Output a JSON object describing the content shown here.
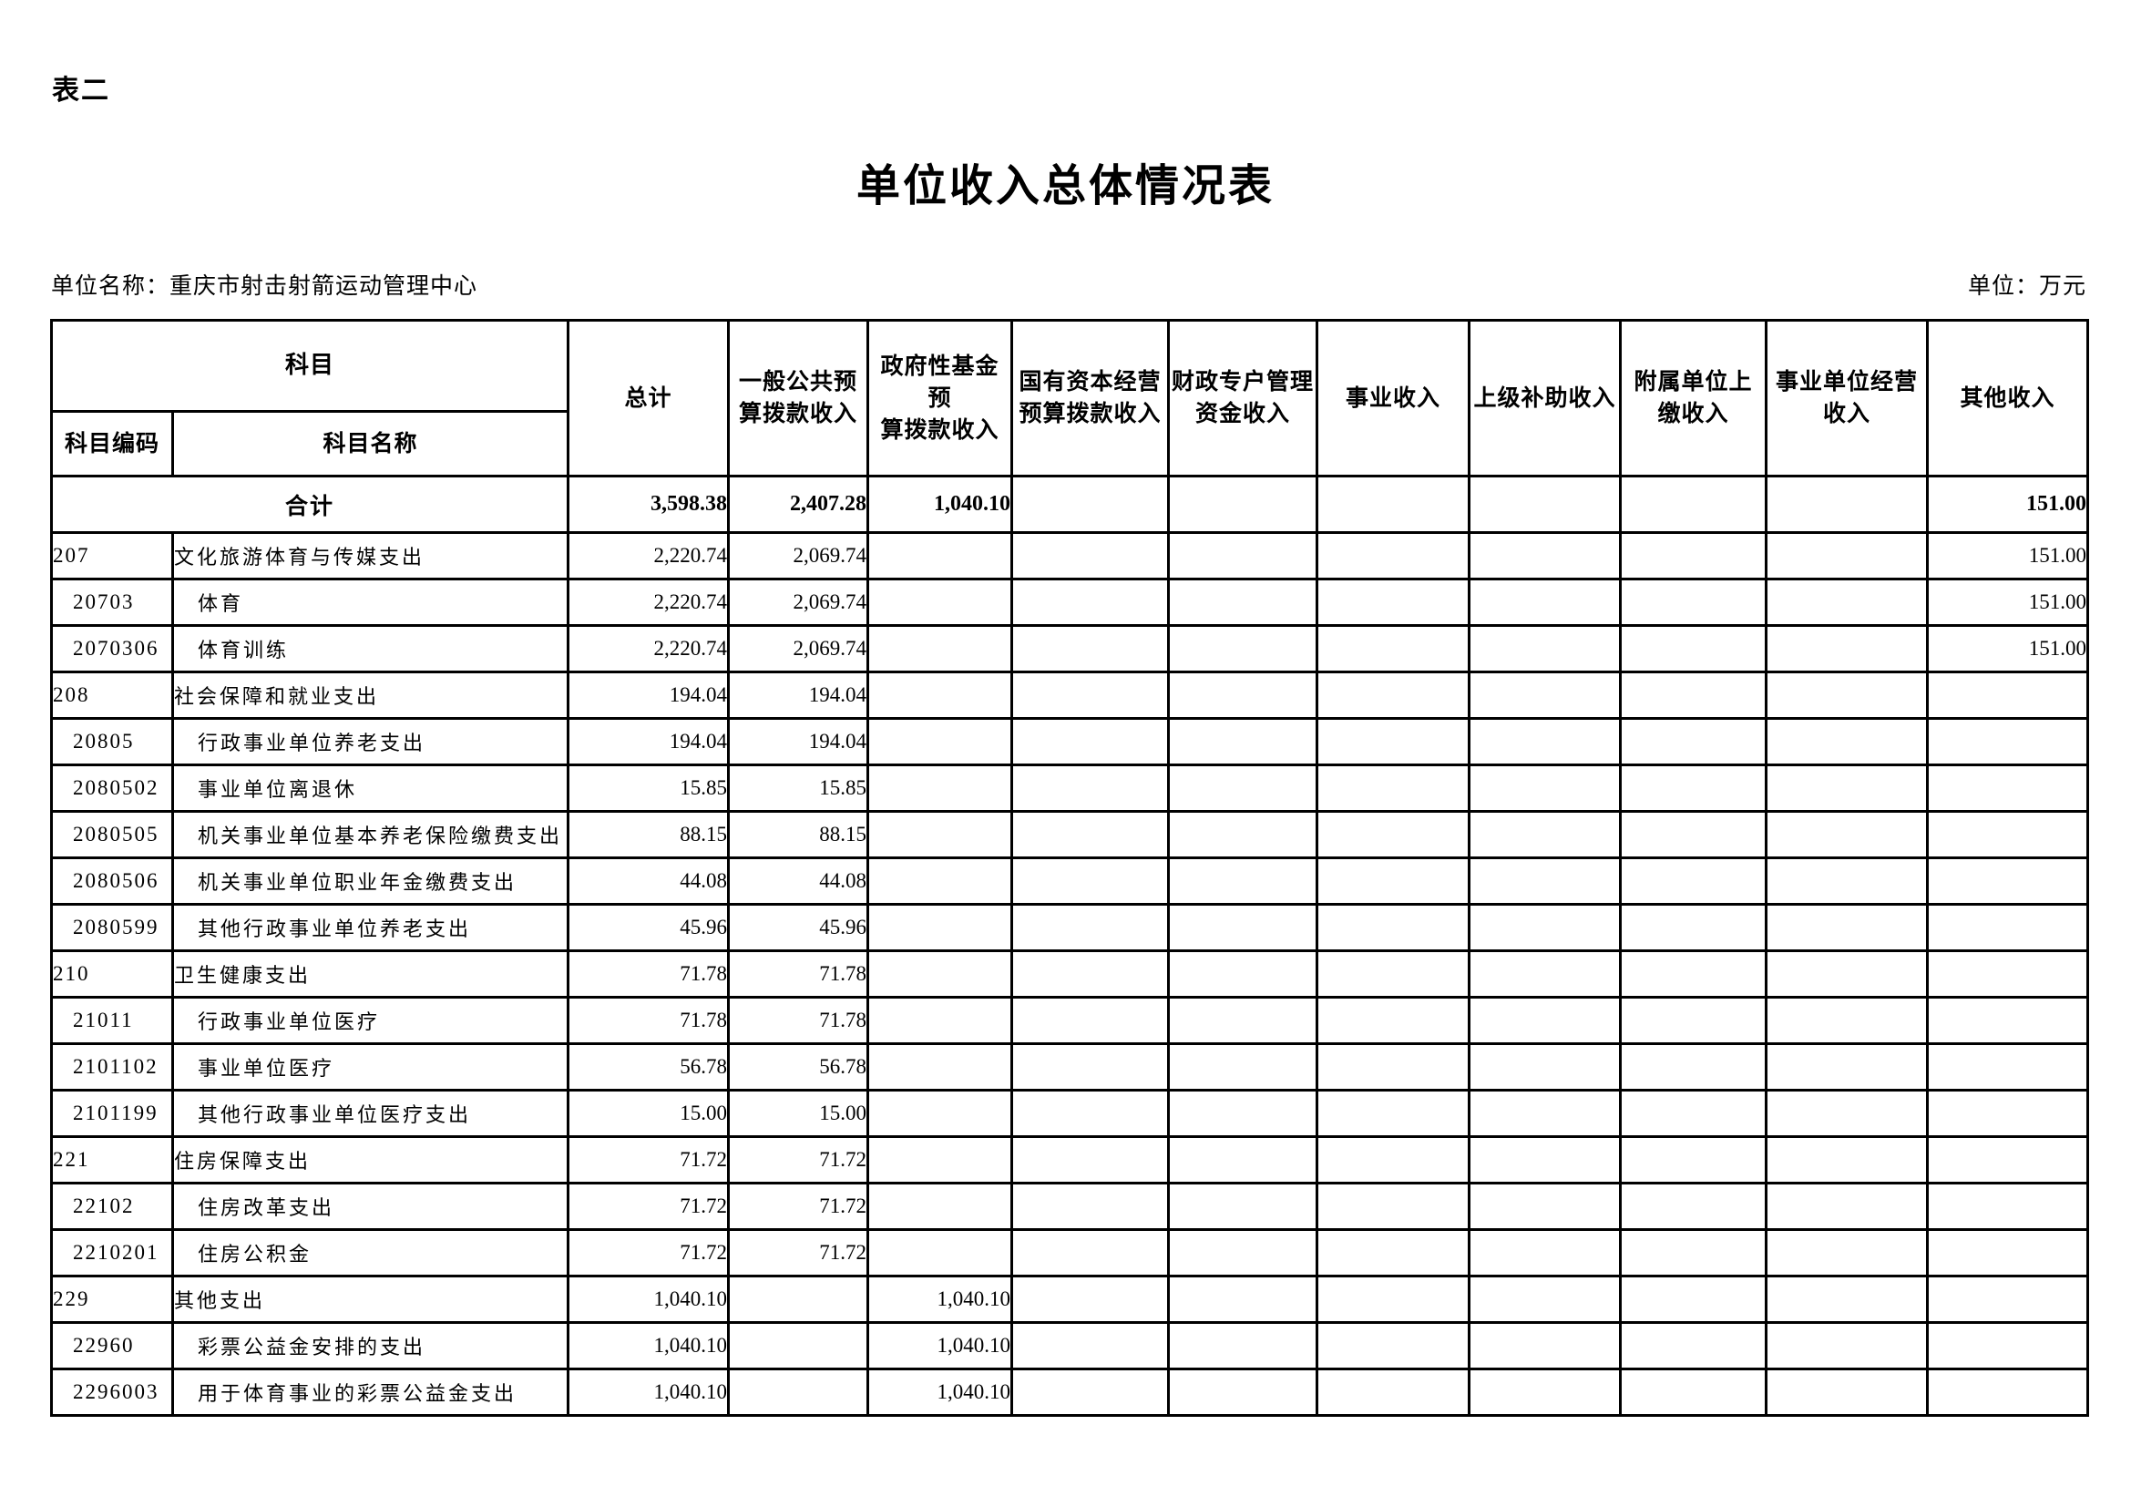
{
  "page": {
    "label": "表二",
    "title": "单位收入总体情况表",
    "unit_name": "单位名称：重庆市射击射箭运动管理中心",
    "unit": "单位：万元"
  },
  "table": {
    "header": {
      "subject": "科目",
      "subject_code": "科目编码",
      "subject_name": "科目名称",
      "columns": [
        "总计",
        "一般公共预\n算拨款收入",
        "政府性基金预\n算拨款收入",
        "国有资本经营\n预算拨款收入",
        "财政专户管理\n资金收入",
        "事业收入",
        "上级补助收入",
        "附属单位上\n缴收入",
        "事业单位经营\n收入",
        "其他收入"
      ]
    },
    "total_row": {
      "label": "合计",
      "values": [
        "3,598.38",
        "2,407.28",
        "1,040.10",
        "",
        "",
        "",
        "",
        "",
        "",
        "151.00"
      ]
    },
    "rows": [
      {
        "code": "207",
        "name": "文化旅游体育与传媒支出",
        "level": 1,
        "values": [
          "2,220.74",
          "2,069.74",
          "",
          "",
          "",
          "",
          "",
          "",
          "",
          "151.00"
        ]
      },
      {
        "code": "20703",
        "name": "体育",
        "level": 2,
        "values": [
          "2,220.74",
          "2,069.74",
          "",
          "",
          "",
          "",
          "",
          "",
          "",
          "151.00"
        ]
      },
      {
        "code": "2070306",
        "name": "体育训练",
        "level": 3,
        "values": [
          "2,220.74",
          "2,069.74",
          "",
          "",
          "",
          "",
          "",
          "",
          "",
          "151.00"
        ]
      },
      {
        "code": "208",
        "name": "社会保障和就业支出",
        "level": 1,
        "values": [
          "194.04",
          "194.04",
          "",
          "",
          "",
          "",
          "",
          "",
          "",
          ""
        ]
      },
      {
        "code": "20805",
        "name": "行政事业单位养老支出",
        "level": 2,
        "values": [
          "194.04",
          "194.04",
          "",
          "",
          "",
          "",
          "",
          "",
          "",
          ""
        ]
      },
      {
        "code": "2080502",
        "name": "事业单位离退休",
        "level": 3,
        "values": [
          "15.85",
          "15.85",
          "",
          "",
          "",
          "",
          "",
          "",
          "",
          ""
        ]
      },
      {
        "code": "2080505",
        "name": "机关事业单位基本养老保险缴费支出",
        "level": 3,
        "values": [
          "88.15",
          "88.15",
          "",
          "",
          "",
          "",
          "",
          "",
          "",
          ""
        ]
      },
      {
        "code": "2080506",
        "name": "机关事业单位职业年金缴费支出",
        "level": 3,
        "values": [
          "44.08",
          "44.08",
          "",
          "",
          "",
          "",
          "",
          "",
          "",
          ""
        ]
      },
      {
        "code": "2080599",
        "name": "其他行政事业单位养老支出",
        "level": 3,
        "values": [
          "45.96",
          "45.96",
          "",
          "",
          "",
          "",
          "",
          "",
          "",
          ""
        ]
      },
      {
        "code": "210",
        "name": "卫生健康支出",
        "level": 1,
        "values": [
          "71.78",
          "71.78",
          "",
          "",
          "",
          "",
          "",
          "",
          "",
          ""
        ]
      },
      {
        "code": "21011",
        "name": "行政事业单位医疗",
        "level": 2,
        "values": [
          "71.78",
          "71.78",
          "",
          "",
          "",
          "",
          "",
          "",
          "",
          ""
        ]
      },
      {
        "code": "2101102",
        "name": "事业单位医疗",
        "level": 3,
        "values": [
          "56.78",
          "56.78",
          "",
          "",
          "",
          "",
          "",
          "",
          "",
          ""
        ]
      },
      {
        "code": "2101199",
        "name": "其他行政事业单位医疗支出",
        "level": 3,
        "values": [
          "15.00",
          "15.00",
          "",
          "",
          "",
          "",
          "",
          "",
          "",
          ""
        ]
      },
      {
        "code": "221",
        "name": "住房保障支出",
        "level": 1,
        "values": [
          "71.72",
          "71.72",
          "",
          "",
          "",
          "",
          "",
          "",
          "",
          ""
        ]
      },
      {
        "code": "22102",
        "name": "住房改革支出",
        "level": 2,
        "values": [
          "71.72",
          "71.72",
          "",
          "",
          "",
          "",
          "",
          "",
          "",
          ""
        ]
      },
      {
        "code": "2210201",
        "name": "住房公积金",
        "level": 3,
        "values": [
          "71.72",
          "71.72",
          "",
          "",
          "",
          "",
          "",
          "",
          "",
          ""
        ]
      },
      {
        "code": "229",
        "name": "其他支出",
        "level": 1,
        "values": [
          "1,040.10",
          "",
          "1,040.10",
          "",
          "",
          "",
          "",
          "",
          "",
          ""
        ]
      },
      {
        "code": "22960",
        "name": "彩票公益金安排的支出",
        "level": 2,
        "values": [
          "1,040.10",
          "",
          "1,040.10",
          "",
          "",
          "",
          "",
          "",
          "",
          ""
        ]
      },
      {
        "code": "2296003",
        "name": "用于体育事业的彩票公益金支出",
        "level": 3,
        "values": [
          "1,040.10",
          "",
          "1,040.10",
          "",
          "",
          "",
          "",
          "",
          "",
          ""
        ]
      }
    ]
  }
}
